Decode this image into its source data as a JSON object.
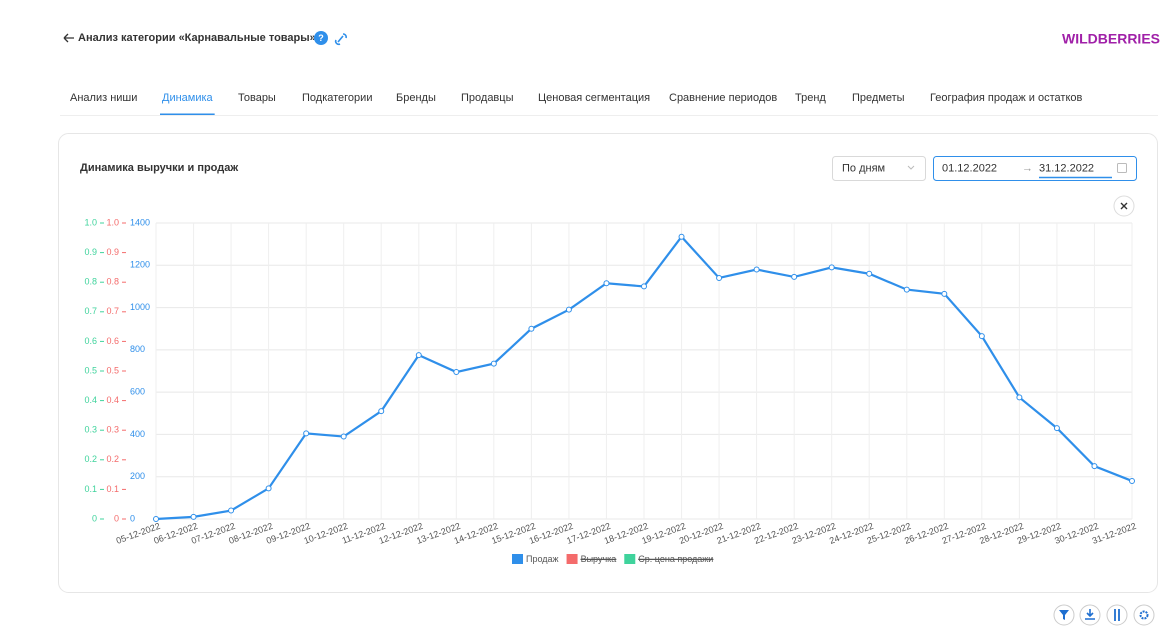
{
  "header": {
    "title": "Анализ категории «Карнавальные товары»",
    "brand": "WILDBERRIES"
  },
  "tabs": {
    "items": [
      "Анализ ниши",
      "Динамика",
      "Товары",
      "Подкатегории",
      "Бренды",
      "Продавцы",
      "Ценовая сегментация",
      "Сравнение периодов",
      "Тренд",
      "Предметы",
      "География продаж и остатков"
    ],
    "active": 1
  },
  "controls": {
    "period": "По дням",
    "date_from": "01.12.2022",
    "range_separator": "→",
    "date_to": "31.12.2022"
  },
  "chart_data": {
    "type": "line",
    "title": "Динамика выручки и продаж",
    "categories": [
      "05-12-2022",
      "06-12-2022",
      "07-12-2022",
      "08-12-2022",
      "09-12-2022",
      "10-12-2022",
      "11-12-2022",
      "12-12-2022",
      "13-12-2022",
      "14-12-2022",
      "15-12-2022",
      "16-12-2022",
      "17-12-2022",
      "18-12-2022",
      "19-12-2022",
      "20-12-2022",
      "21-12-2022",
      "22-12-2022",
      "23-12-2022",
      "24-12-2022",
      "25-12-2022",
      "26-12-2022",
      "27-12-2022",
      "28-12-2022",
      "29-12-2022",
      "30-12-2022",
      "31-12-2022"
    ],
    "series": [
      {
        "name": "Продаж",
        "color": "#2f8fea",
        "visible": true,
        "values": [
          0,
          10,
          40,
          145,
          405,
          390,
          510,
          775,
          695,
          735,
          900,
          990,
          1115,
          1100,
          1335,
          1140,
          1180,
          1145,
          1190,
          1160,
          1085,
          1065,
          865,
          575,
          430,
          250,
          180
        ]
      },
      {
        "name": "Выручка",
        "color": "#f46b6b",
        "visible": false,
        "axis": "y2"
      },
      {
        "name": "Ср. цена продажи",
        "color": "#3fd39c",
        "visible": false,
        "axis": "y3"
      }
    ],
    "ylim": [
      0,
      1400
    ],
    "yticks": [
      0,
      200,
      400,
      600,
      800,
      1000,
      1200,
      1400
    ],
    "y2lim": [
      0,
      1
    ],
    "y2ticks": [
      0,
      0.1,
      0.2,
      0.3,
      0.4,
      0.5,
      0.6,
      0.7,
      0.8,
      0.9,
      {
        "value": 1,
        "label": "1.0"
      }
    ],
    "y3lim": [
      0,
      1
    ],
    "y3ticks": [
      0,
      0.1,
      0.2,
      0.3,
      0.4,
      0.5,
      0.6,
      0.7,
      0.8,
      0.9,
      {
        "value": 1,
        "label": "1.0"
      }
    ],
    "grid": true,
    "legend": "bottom"
  }
}
